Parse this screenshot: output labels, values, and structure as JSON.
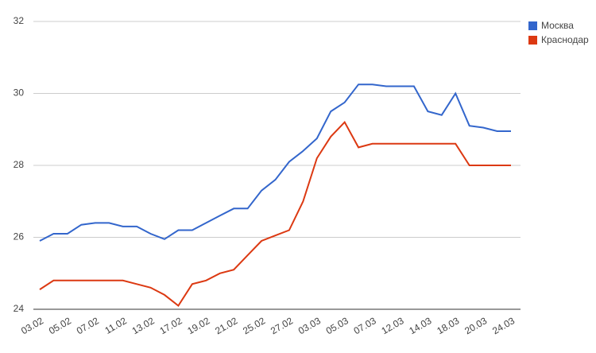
{
  "chart_data": {
    "type": "line",
    "categories": [
      "03.02",
      null,
      "05.02",
      null,
      "07.02",
      null,
      "11.02",
      null,
      "13.02",
      null,
      "17.02",
      null,
      "19.02",
      null,
      "21.02",
      null,
      "25.02",
      null,
      "27.02",
      null,
      "03.03",
      null,
      "05.03",
      null,
      "07.03",
      null,
      "12.03",
      null,
      "14.03",
      null,
      "18.03",
      null,
      "20.03",
      null,
      "24.03"
    ],
    "series": [
      {
        "name": "Москва",
        "color": "#3366cc",
        "values": [
          25.9,
          26.1,
          26.1,
          26.35,
          26.4,
          26.4,
          26.3,
          26.3,
          26.1,
          25.95,
          26.2,
          26.2,
          26.4,
          26.6,
          26.8,
          26.8,
          27.3,
          27.6,
          28.1,
          28.4,
          28.75,
          29.5,
          29.75,
          30.25,
          30.25,
          30.2,
          30.2,
          30.2,
          29.5,
          29.4,
          30.0,
          29.1,
          29.05,
          28.95,
          28.95
        ]
      },
      {
        "name": "Краснодар",
        "color": "#dc3912",
        "values": [
          24.55,
          24.8,
          24.8,
          24.8,
          24.8,
          24.8,
          24.8,
          24.7,
          24.6,
          24.4,
          24.1,
          24.7,
          24.8,
          25.0,
          25.1,
          25.5,
          25.9,
          26.05,
          26.2,
          27.0,
          28.2,
          28.8,
          29.2,
          28.5,
          28.6,
          28.6,
          28.6,
          28.6,
          28.6,
          28.6,
          28.6,
          28.0,
          28.0,
          28.0,
          28.0
        ]
      }
    ],
    "ylim": [
      24,
      32
    ],
    "yticks": [
      24,
      26,
      28,
      30,
      32
    ],
    "grid": true,
    "legend": "right"
  }
}
